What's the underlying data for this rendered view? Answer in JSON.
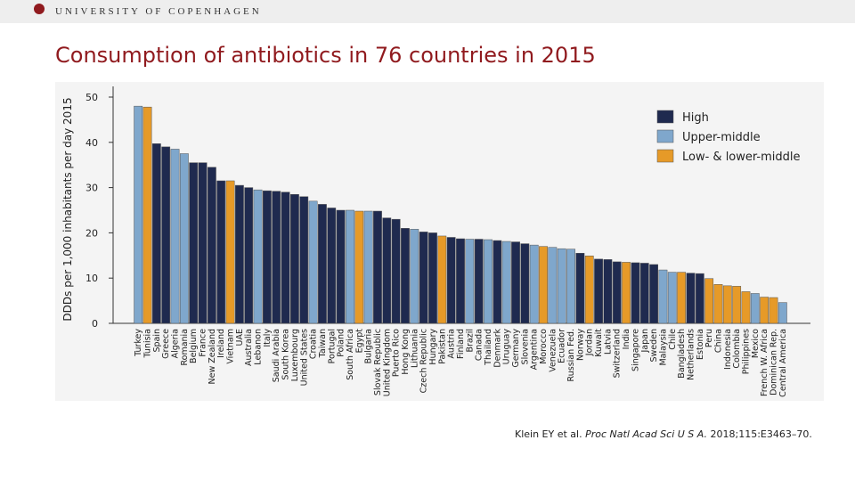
{
  "header": {
    "institution": "UNIVERSITY OF COPENHAGEN"
  },
  "chart_data": {
    "type": "bar",
    "title": "Consumption of antibiotics in 76 countries in 2015",
    "y_label": "DDDs per 1,000 inhabitants per day 2015",
    "legend": [
      {
        "name": "High",
        "color": "#1f2a4f"
      },
      {
        "name": "Upper-middle",
        "color": "#7fa7cc"
      },
      {
        "name": "Low- & lower-middle",
        "color": "#e69a28"
      }
    ],
    "categories": [
      "Turkey",
      "Tunisia",
      "Spain",
      "Greece",
      "Algeria",
      "Romania",
      "Belgium",
      "France",
      "New Zealand",
      "Ireland",
      "Vietnam",
      "UAE",
      "Australia",
      "Lebanon",
      "Italy",
      "Saudi Arabia",
      "South Korea",
      "Luxembourg",
      "United States",
      "Croatia",
      "Taiwan",
      "Portugal",
      "Poland",
      "South Africa",
      "Egypt",
      "Bulgaria",
      "Slovak Republic",
      "United Kingdom",
      "Puerto Rico",
      "Hong Kong",
      "Lithuania",
      "Czech Republic",
      "Hungary",
      "Pakistan",
      "Austria",
      "Finland",
      "Brazil",
      "Canada",
      "Thailand",
      "Denmark",
      "Uruguay",
      "Germany",
      "Slovenia",
      "Argentina",
      "Morocco",
      "Venezuela",
      "Ecuador",
      "Russian Fed.",
      "Norway",
      "Jordan",
      "Kuwait",
      "Latvia",
      "Switzerland",
      "India",
      "Singapore",
      "Japan",
      "Sweden",
      "Malaysia",
      "Chile",
      "Bangladesh",
      "Netherlands",
      "Estonia",
      "Peru",
      "China",
      "Indonesia",
      "Colombia",
      "Philippines",
      "Mexico",
      "French W. Africa",
      "Dominican Rep.",
      "Central America"
    ],
    "values": [
      48,
      47.8,
      39.7,
      39,
      38.5,
      37.5,
      35.5,
      35.5,
      34.5,
      31.5,
      31.5,
      30.5,
      30,
      29.5,
      29.3,
      29.2,
      29,
      28.5,
      28,
      27,
      26.3,
      25.5,
      25,
      25,
      24.8,
      24.8,
      24.8,
      23.3,
      23,
      21,
      20.8,
      20.2,
      20,
      19.3,
      19,
      18.7,
      18.6,
      18.6,
      18.5,
      18.3,
      18.1,
      18,
      17.6,
      17.3,
      17,
      16.8,
      16.5,
      16.4,
      15.5,
      14.9,
      14.2,
      14.1,
      13.6,
      13.5,
      13.4,
      13.3,
      13,
      11.8,
      11.3,
      11.3,
      11.1,
      11,
      9.9,
      8.6,
      8.3,
      8.2,
      7,
      6.6,
      5.8,
      5.7,
      4.6
    ],
    "groups": [
      1,
      2,
      0,
      0,
      1,
      1,
      0,
      0,
      0,
      0,
      2,
      0,
      0,
      1,
      0,
      0,
      0,
      0,
      0,
      1,
      0,
      0,
      0,
      1,
      2,
      1,
      0,
      0,
      0,
      0,
      1,
      0,
      0,
      2,
      0,
      0,
      1,
      0,
      1,
      0,
      1,
      0,
      0,
      1,
      2,
      1,
      1,
      1,
      0,
      2,
      0,
      0,
      0,
      2,
      0,
      0,
      0,
      1,
      1,
      2,
      0,
      0,
      2,
      2,
      2,
      2,
      2,
      1,
      2,
      2,
      1
    ],
    "ylim": [
      0,
      50
    ],
    "yticks": [
      0,
      10,
      20,
      30,
      40,
      50
    ]
  },
  "citation": {
    "authors": "Klein EY et al.",
    "journal": "Proc Natl Acad Sci U S A.",
    "ref": "2018;115:E3463–70."
  }
}
